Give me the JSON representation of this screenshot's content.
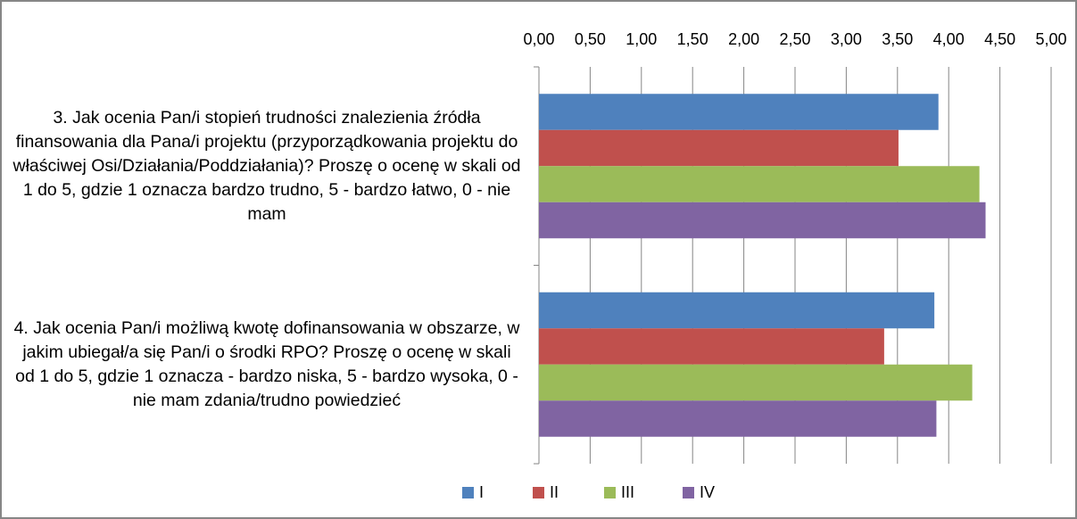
{
  "chart_data": {
    "type": "hbar",
    "categories": [
      "3. Jak ocenia Pan/i stopień trudności znalezienia źródła finansowania dla Pana/i projektu (przyporządkowania projektu do właściwej Osi/Działania/Poddziałania)? Proszę o ocenę w skali od 1 do 5, gdzie 1 oznacza bardzo trudno, 5 - bardzo łatwo, 0 - nie mam",
      "4. Jak ocenia Pan/i możliwą kwotę dofinansowania w obszarze,  w jakim ubiegał/a się Pan/i o środki RPO? Proszę o ocenę w skali od 1 do 5, gdzie 1 oznacza - bardzo niska, 5 - bardzo wysoka, 0 - nie mam zdania/trudno powiedzieć"
    ],
    "series": [
      {
        "name": "I",
        "color": "#4f81bd",
        "values": [
          3.9,
          3.86
        ]
      },
      {
        "name": "II",
        "color": "#c0504d",
        "values": [
          3.51,
          3.37
        ]
      },
      {
        "name": "III",
        "color": "#9bbb59",
        "values": [
          4.3,
          4.23
        ]
      },
      {
        "name": "IV",
        "color": "#8064a2",
        "values": [
          4.36,
          3.88
        ]
      }
    ],
    "xlim": [
      0,
      5
    ],
    "xticks": [
      {
        "value": 0,
        "label": "0,00"
      },
      {
        "value": 0.5,
        "label": "0,50"
      },
      {
        "value": 1,
        "label": "1,00"
      },
      {
        "value": 1.5,
        "label": "1,50"
      },
      {
        "value": 2,
        "label": "2,00"
      },
      {
        "value": 2.5,
        "label": "2,50"
      },
      {
        "value": 3,
        "label": "3,00"
      },
      {
        "value": 3.5,
        "label": "3,50"
      },
      {
        "value": 4,
        "label": "4,00"
      },
      {
        "value": 4.5,
        "label": "4,50"
      },
      {
        "value": 5,
        "label": "5,00"
      }
    ],
    "grid": true,
    "legend": "bottom"
  }
}
